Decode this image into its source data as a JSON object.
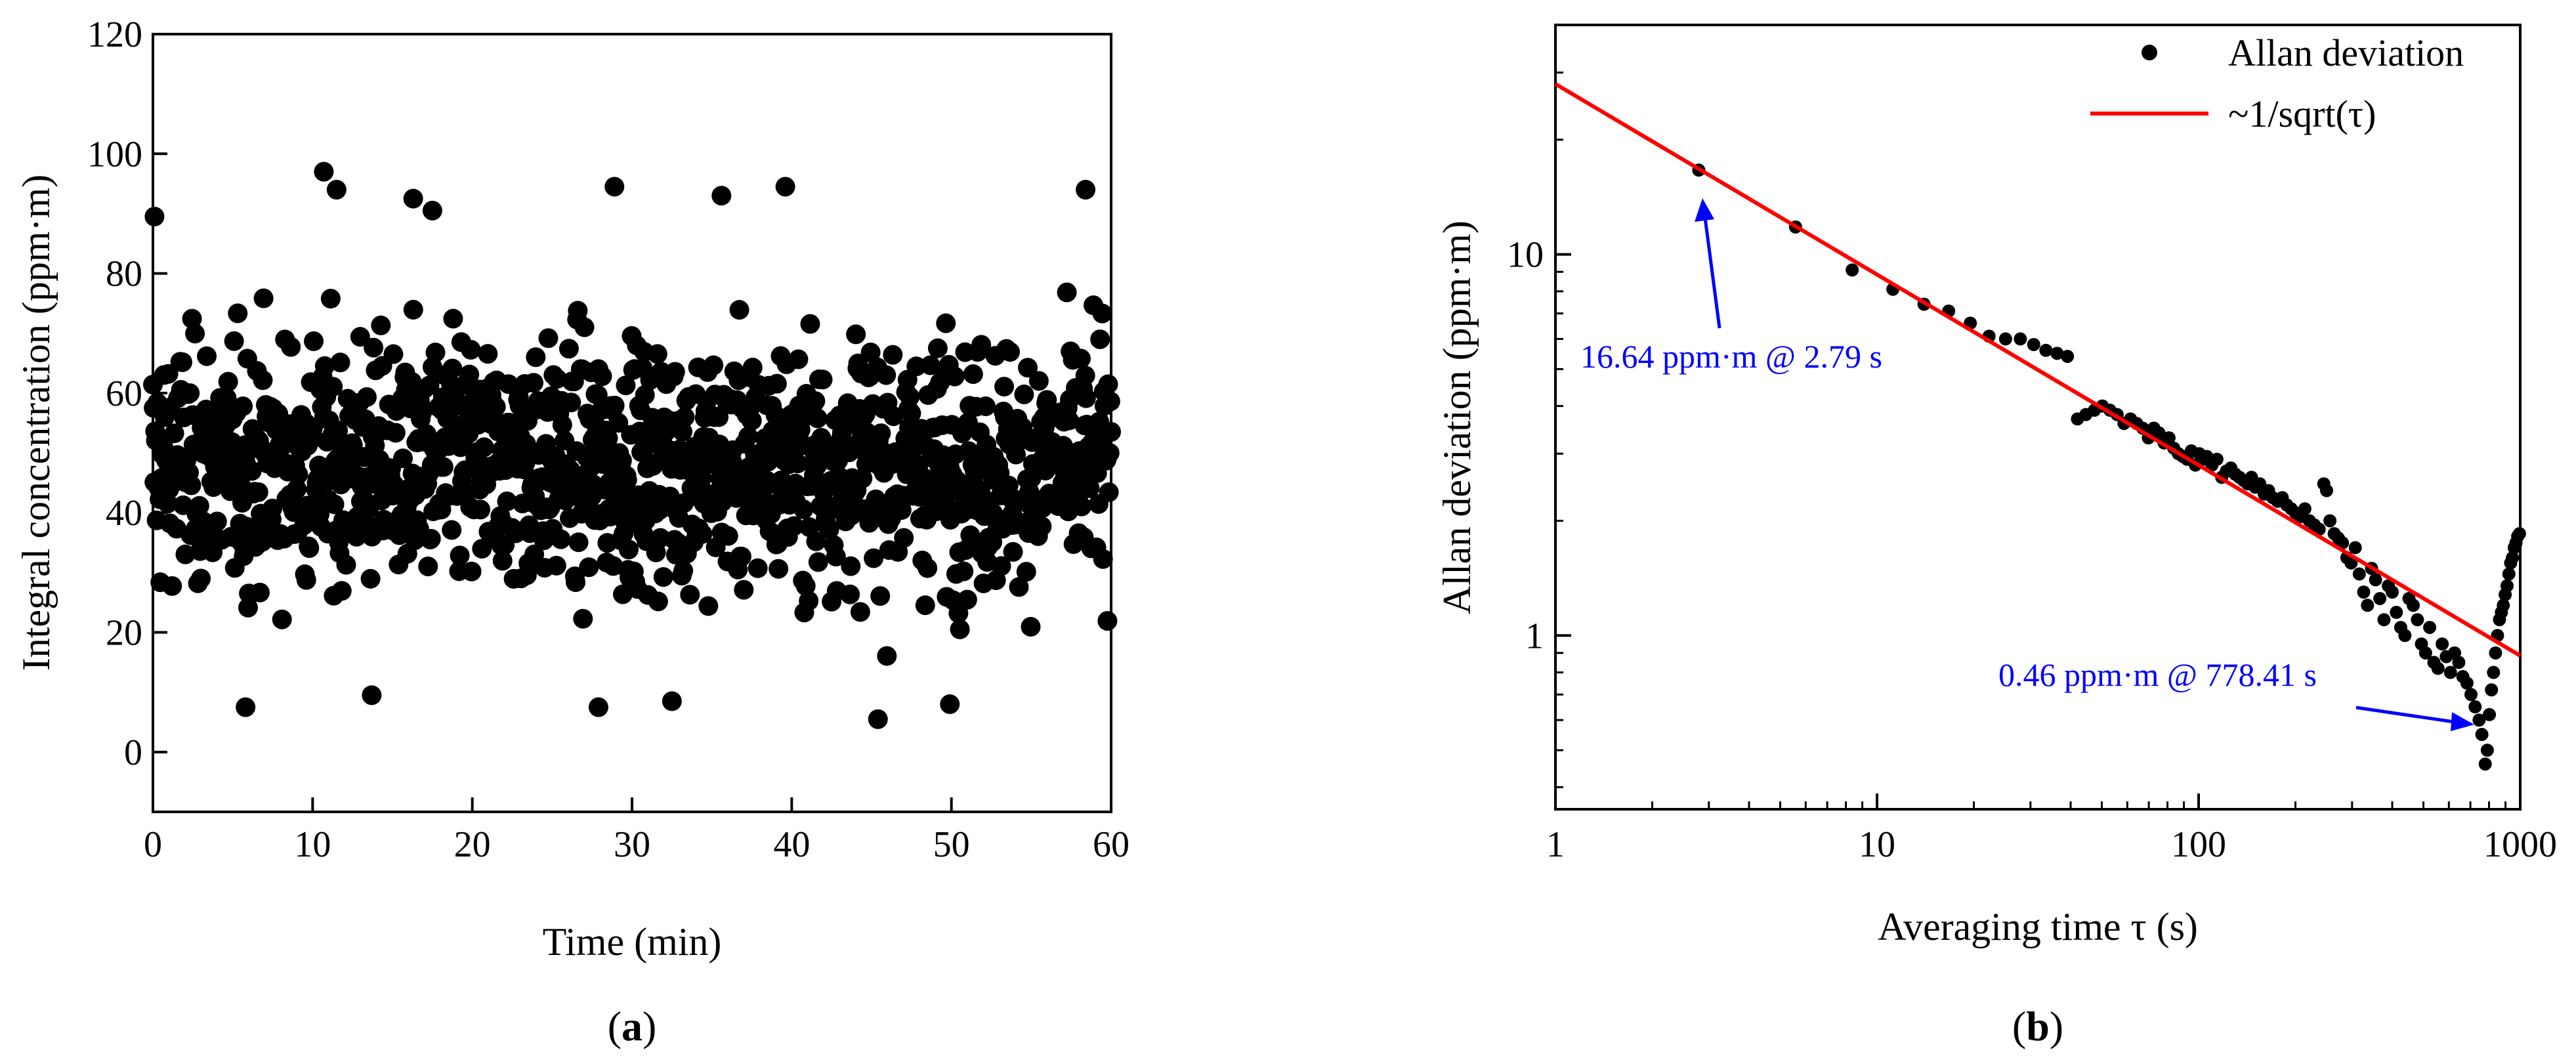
{
  "chart_data": [
    {
      "type": "scatter",
      "panel_label": "a",
      "xlabel": "Time (min)",
      "ylabel": "Integral concentration (ppm·m)",
      "xlim": [
        0,
        60
      ],
      "ylim": [
        -10,
        120
      ],
      "xticks": [
        0,
        10,
        20,
        30,
        40,
        50,
        60
      ],
      "yticks": [
        0,
        20,
        40,
        60,
        80,
        100,
        120
      ],
      "grid": false,
      "marker_color": "#000000",
      "points_generated": {
        "description_of_distribution": "roughly 1300 points, t from 0 to 60 min, concentration centered near 48 ppm·m, spread ~14, range about 6 to 97",
        "n": 1300,
        "mean": 48,
        "std": 14,
        "min": 6,
        "max": 97
      },
      "highlight_points": [
        {
          "x": 0.1,
          "y": 89.5
        },
        {
          "x": 10.7,
          "y": 97
        },
        {
          "x": 11.5,
          "y": 94
        },
        {
          "x": 16.3,
          "y": 92.5
        },
        {
          "x": 17.5,
          "y": 90.5
        },
        {
          "x": 28.9,
          "y": 94.5
        },
        {
          "x": 35.6,
          "y": 93
        },
        {
          "x": 39.6,
          "y": 94.5
        },
        {
          "x": 58.4,
          "y": 94
        },
        {
          "x": 5.8,
          "y": 7.5
        },
        {
          "x": 27.9,
          "y": 7.5
        },
        {
          "x": 45.4,
          "y": 5.5
        },
        {
          "x": 32.5,
          "y": 8.5
        },
        {
          "x": 13.7,
          "y": 9.5
        },
        {
          "x": 49.9,
          "y": 8
        }
      ]
    },
    {
      "type": "scatter",
      "panel_label": "b",
      "xlabel": "Averaging time τ (s)",
      "ylabel": "Allan deviation (ppm·m)",
      "xscale": "log",
      "yscale": "log",
      "xlim": [
        1,
        1000
      ],
      "ylim": [
        0.35,
        40
      ],
      "xticks": [
        1,
        10,
        100,
        1000
      ],
      "xtick_labels": [
        "1",
        "10",
        "100",
        "1000"
      ],
      "yticks": [
        1,
        10
      ],
      "ytick_labels": [
        "1",
        "10"
      ],
      "grid": false,
      "legend": {
        "placement": "top-right",
        "entries": [
          {
            "label": "Allan deviation",
            "marker": "dot",
            "color": "#000000"
          },
          {
            "label": "~1/sqrt(τ)",
            "marker": "line",
            "color": "#ff0000"
          }
        ]
      },
      "series": [
        {
          "name": "Allan deviation",
          "color": "#000000",
          "points": [
            [
              2.79,
              16.64
            ],
            [
              5.58,
              11.8
            ],
            [
              8.37,
              9.1
            ],
            [
              11.2,
              8.1
            ],
            [
              14,
              7.4
            ],
            [
              16.7,
              7.1
            ],
            [
              19.5,
              6.6
            ],
            [
              22.3,
              6.1
            ],
            [
              25.1,
              6.0
            ],
            [
              27.9,
              6.0
            ],
            [
              30.7,
              5.8
            ],
            [
              33.5,
              5.6
            ],
            [
              36.3,
              5.5
            ],
            [
              39.1,
              5.4
            ],
            [
              42,
              3.7
            ],
            [
              44.6,
              3.8
            ],
            [
              47.4,
              3.9
            ],
            [
              50.2,
              4.0
            ],
            [
              53,
              3.9
            ],
            [
              55.8,
              3.8
            ],
            [
              58.6,
              3.6
            ],
            [
              61.4,
              3.7
            ],
            [
              64.2,
              3.6
            ],
            [
              67,
              3.5
            ],
            [
              69.8,
              3.3
            ],
            [
              72.6,
              3.5
            ],
            [
              75.3,
              3.4
            ],
            [
              78.1,
              3.2
            ],
            [
              80.9,
              3.3
            ],
            [
              83.7,
              3.1
            ],
            [
              86.5,
              3.0
            ],
            [
              89.3,
              2.95
            ],
            [
              92.1,
              2.9
            ],
            [
              94.9,
              3.05
            ],
            [
              97.7,
              2.8
            ],
            [
              100.5,
              3.0
            ],
            [
              103.2,
              2.9
            ],
            [
              106,
              2.95
            ],
            [
              110,
              2.8
            ],
            [
              114,
              2.9
            ],
            [
              118,
              2.6
            ],
            [
              122,
              2.7
            ],
            [
              126,
              2.75
            ],
            [
              130,
              2.65
            ],
            [
              134,
              2.6
            ],
            [
              138,
              2.55
            ],
            [
              142,
              2.5
            ],
            [
              146,
              2.6
            ],
            [
              150,
              2.45
            ],
            [
              155,
              2.5
            ],
            [
              160,
              2.35
            ],
            [
              165,
              2.4
            ],
            [
              170,
              2.3
            ],
            [
              176,
              2.25
            ],
            [
              182,
              2.3
            ],
            [
              188,
              2.2
            ],
            [
              194,
              2.15
            ],
            [
              200,
              2.1
            ],
            [
              207,
              2.05
            ],
            [
              214,
              2.15
            ],
            [
              221,
              2.0
            ],
            [
              229,
              1.95
            ],
            [
              237,
              1.9
            ],
            [
              245,
              2.5
            ],
            [
              250,
              2.4
            ],
            [
              256,
              2.0
            ],
            [
              264,
              1.85
            ],
            [
              272,
              1.8
            ],
            [
              280,
              1.75
            ],
            [
              289,
              1.6
            ],
            [
              298,
              1.55
            ],
            [
              307,
              1.7
            ],
            [
              316,
              1.45
            ],
            [
              326,
              1.3
            ],
            [
              335,
              1.2
            ],
            [
              345,
              1.5
            ],
            [
              355,
              1.4
            ],
            [
              366,
              1.25
            ],
            [
              377,
              1.1
            ],
            [
              389,
              1.35
            ],
            [
              400,
              1.3
            ],
            [
              412,
              1.15
            ],
            [
              425,
              1.05
            ],
            [
              438,
              1.0
            ],
            [
              451,
              1.25
            ],
            [
              465,
              1.2
            ],
            [
              479,
              1.1
            ],
            [
              493,
              0.95
            ],
            [
              508,
              0.9
            ],
            [
              523,
              1.05
            ],
            [
              539,
              0.85
            ],
            [
              555,
              0.82
            ],
            [
              572,
              0.95
            ],
            [
              589,
              0.88
            ],
            [
              607,
              0.8
            ],
            [
              625,
              0.9
            ],
            [
              644,
              0.85
            ],
            [
              663,
              0.78
            ],
            [
              683,
              0.75
            ],
            [
              703,
              0.7
            ],
            [
              724,
              0.65
            ],
            [
              745,
              0.6
            ],
            [
              760,
              0.55
            ],
            [
              778.41,
              0.46
            ],
            [
              790,
              0.5
            ],
            [
              802,
              0.62
            ],
            [
              814,
              0.72
            ],
            [
              826,
              0.8
            ],
            [
              838,
              0.9
            ],
            [
              850,
              1.0
            ],
            [
              862,
              1.1
            ],
            [
              874,
              1.15
            ],
            [
              886,
              1.2
            ],
            [
              898,
              1.28
            ],
            [
              910,
              1.35
            ],
            [
              922,
              1.45
            ],
            [
              934,
              1.55
            ],
            [
              946,
              1.6
            ],
            [
              958,
              1.7
            ],
            [
              970,
              1.75
            ],
            [
              982,
              1.82
            ],
            [
              995,
              1.85
            ]
          ]
        },
        {
          "name": "~1/sqrt(τ)",
          "color": "#ff0000",
          "points": [
            [
              1,
              28.0
            ],
            [
              1000,
              0.885
            ]
          ]
        }
      ],
      "annotations": [
        {
          "text": "16.64 ppm·m @ 2.79 s",
          "color": "#0000ff",
          "points_to": [
            2.79,
            16.64
          ]
        },
        {
          "text": "0.46 ppm·m @ 778.41 s",
          "color": "#0000ff",
          "points_to": [
            778.41,
            0.46
          ]
        }
      ]
    }
  ]
}
